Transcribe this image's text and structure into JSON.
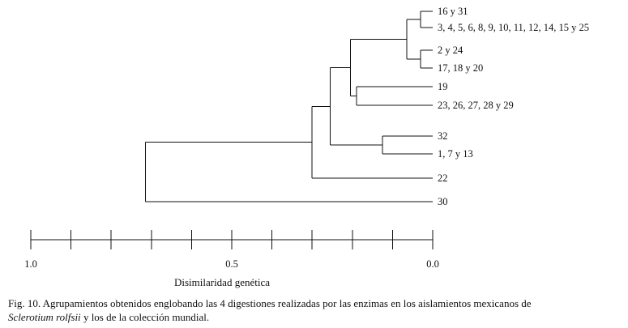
{
  "leaves": [
    {
      "id": "l1",
      "label": "16 y 31"
    },
    {
      "id": "l2",
      "label": "3, 4, 5, 6, 8, 9, 10, 11, 12, 14, 15 y 25"
    },
    {
      "id": "l3",
      "label": "2 y 24"
    },
    {
      "id": "l4",
      "label": "17, 18 y 20"
    },
    {
      "id": "l5",
      "label": "19"
    },
    {
      "id": "l6",
      "label": "23, 26, 27, 28 y 29"
    },
    {
      "id": "l7",
      "label": "32"
    },
    {
      "id": "l8",
      "label": "1, 7 y 13"
    },
    {
      "id": "l9",
      "label": "22"
    },
    {
      "id": "l10",
      "label": "30"
    }
  ],
  "merges": [
    {
      "id": "n1",
      "children": [
        "l1",
        "l2"
      ],
      "height": 0.03
    },
    {
      "id": "n2",
      "children": [
        "l3",
        "l4"
      ],
      "height": 0.03
    },
    {
      "id": "n3",
      "children": [
        "n1",
        "n2"
      ],
      "height": 0.065
    },
    {
      "id": "n4",
      "children": [
        "l5",
        "l6"
      ],
      "height": 0.19
    },
    {
      "id": "n5",
      "children": [
        "n3",
        "n4"
      ],
      "height": 0.205
    },
    {
      "id": "n6",
      "children": [
        "l7",
        "l8"
      ],
      "height": 0.125
    },
    {
      "id": "n7",
      "children": [
        "n5",
        "n6"
      ],
      "height": 0.255
    },
    {
      "id": "n8",
      "children": [
        "n7",
        "l9"
      ],
      "height": 0.3
    },
    {
      "id": "n9",
      "children": [
        "n8",
        "l10"
      ],
      "height": 0.715
    }
  ],
  "axis": {
    "range": [
      1.0,
      0.0
    ],
    "ticks": [
      1.0,
      0.9,
      0.8,
      0.7,
      0.6,
      0.5,
      0.4,
      0.3,
      0.2,
      0.1,
      0.0
    ],
    "tick_labels": [
      {
        "value": 1.0,
        "text": "1.0"
      },
      {
        "value": 0.5,
        "text": "0.5"
      },
      {
        "value": 0.0,
        "text": "0.0"
      }
    ],
    "title": "Disimilaridad genética"
  },
  "caption": {
    "prefix": "Fig. 10.  Agrupamientos obtenidos englobando las 4 digestiones realizadas por las enzimas en los aislamientos mexicanos de",
    "species": "Sclerotium rolfsii",
    "suffix": " y los de la colección mundial."
  }
}
